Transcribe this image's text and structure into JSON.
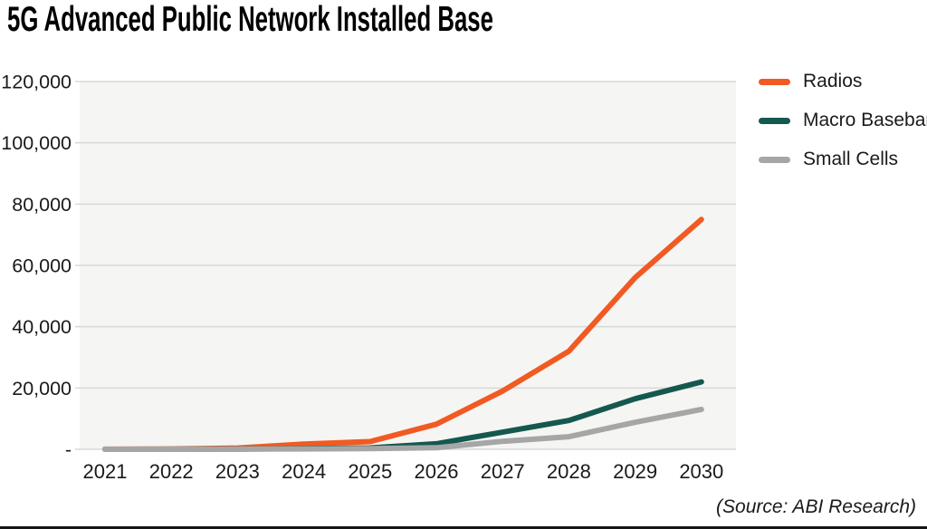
{
  "page": {
    "title": "5G Advanced Public Network Installed Base",
    "source_note": "(Source: ABI Research)"
  },
  "chart_data": {
    "type": "line",
    "title": "5G Advanced Public Network Installed Base",
    "x_labels": [
      "2021",
      "2022",
      "2023",
      "2024",
      "2025",
      "2026",
      "2027",
      "2028",
      "2029",
      "2030"
    ],
    "series": [
      {
        "name": "Radios",
        "color": "#F15A22",
        "values": [
          20,
          80,
          400,
          1700,
          2500,
          8200,
          19000,
          32000,
          56000,
          75000
        ]
      },
      {
        "name": "Macro Baseband",
        "color": "#14584E",
        "values": [
          0,
          20,
          100,
          250,
          450,
          1800,
          5600,
          9400,
          16500,
          22000
        ]
      },
      {
        "name": "Small Cells",
        "color": "#A6A6A6",
        "values": [
          0,
          10,
          50,
          120,
          250,
          500,
          2600,
          4100,
          8800,
          13000
        ]
      }
    ],
    "ylim": [
      0,
      120000
    ],
    "ytick_step": 20000,
    "ytick_labels": [
      "-",
      "20,000",
      "40,000",
      "60,000",
      "80,000",
      "100,000",
      "120,000"
    ],
    "grid": true,
    "legend_position": "right",
    "plot_background": "#F5F5F3",
    "grid_color": "#D8D8D8",
    "axis_text_color": "#1A1A1A",
    "source": "(Source: ABI Research)"
  }
}
